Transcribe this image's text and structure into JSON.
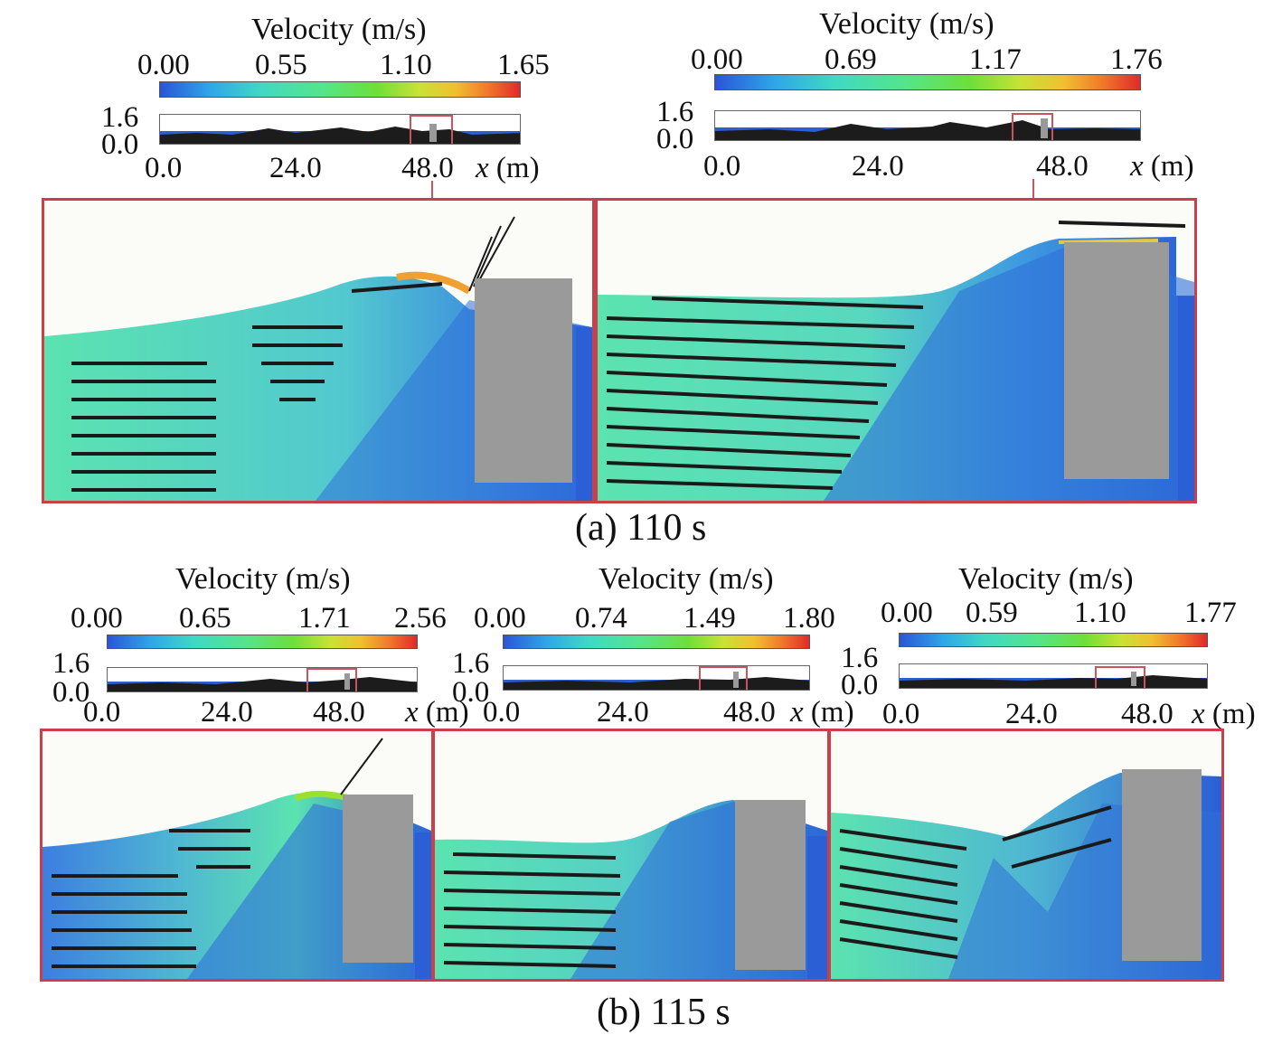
{
  "colors": {
    "zoom_frame": "#c9404a",
    "water": "#2b5fd6",
    "flow": "#5be3b0",
    "building": "#9a9a9a",
    "arrows": "#1a1a1a"
  },
  "colorbar_title": "Velocity (m/s)",
  "overview": {
    "y_ticks": [
      "1.6",
      "0.0"
    ],
    "x_ticks": [
      "0.0",
      "24.0",
      "48.0"
    ],
    "x_label_var": "x",
    "x_label_unit": "(m)"
  },
  "section_a": {
    "caption": "(a) 110 s",
    "plots": [
      {
        "colorbar_ticks": [
          "0.00",
          "0.55",
          "1.10",
          "1.65"
        ]
      },
      {
        "colorbar_ticks": [
          "0.00",
          "0.69",
          "1.17",
          "1.76"
        ]
      }
    ]
  },
  "section_b": {
    "caption": "(b) 115 s",
    "plots": [
      {
        "colorbar_ticks": [
          "0.00",
          "0.65",
          "1.71",
          "2.56"
        ]
      },
      {
        "colorbar_ticks": [
          "0.00",
          "0.74",
          "1.49",
          "1.80"
        ]
      },
      {
        "colorbar_ticks": [
          "0.00",
          "0.59",
          "1.10",
          "1.77"
        ]
      }
    ]
  }
}
